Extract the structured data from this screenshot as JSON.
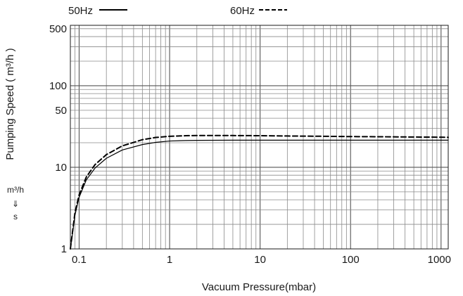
{
  "chart_data": {
    "type": "line",
    "title": "",
    "xlabel": "Vacuum Pressure(mbar)",
    "ylabel": "Pumping Speed ( m³/h )",
    "x_scale": "log",
    "y_scale": "log",
    "xlim": [
      0.08,
      1200
    ],
    "ylim": [
      1,
      550
    ],
    "x_ticks": [
      0.1,
      1,
      10,
      100,
      1000
    ],
    "x_tick_labels": [
      "0.1",
      "1",
      "10",
      "100",
      "1000"
    ],
    "y_ticks": [
      1,
      10,
      50,
      100,
      500
    ],
    "y_tick_labels": [
      "1",
      "10",
      "50",
      "100",
      "500"
    ],
    "grid": true,
    "legend_position": "top",
    "series": [
      {
        "name": "50Hz",
        "style": "solid",
        "color": "#000000",
        "x": [
          0.08,
          0.085,
          0.09,
          0.1,
          0.12,
          0.15,
          0.2,
          0.3,
          0.5,
          0.7,
          1,
          1.5,
          2,
          5,
          10,
          20,
          50,
          100,
          200,
          500,
          1000,
          1200
        ],
        "y": [
          1.0,
          1.6,
          2.6,
          4.3,
          7.0,
          9.8,
          12.9,
          16.3,
          19.0,
          20.2,
          21.0,
          21.3,
          21.4,
          21.5,
          21.5,
          21.5,
          21.5,
          21.5,
          21.5,
          21.5,
          21.5,
          21.5
        ]
      },
      {
        "name": "60Hz",
        "style": "dashed",
        "color": "#000000",
        "x": [
          0.08,
          0.085,
          0.09,
          0.1,
          0.12,
          0.15,
          0.2,
          0.3,
          0.5,
          0.7,
          1,
          1.5,
          2,
          5,
          10,
          20,
          50,
          100,
          200,
          500,
          1000,
          1200
        ],
        "y": [
          1.0,
          1.7,
          2.8,
          4.6,
          7.6,
          10.8,
          14.3,
          18.3,
          21.8,
          23.2,
          24.0,
          24.4,
          24.5,
          24.5,
          24.4,
          24.2,
          24.0,
          23.8,
          23.7,
          23.5,
          23.4,
          23.3
        ]
      }
    ],
    "unit_annotation": {
      "numerator": "m³/h",
      "symbol": "⇓",
      "denominator": "s"
    }
  }
}
